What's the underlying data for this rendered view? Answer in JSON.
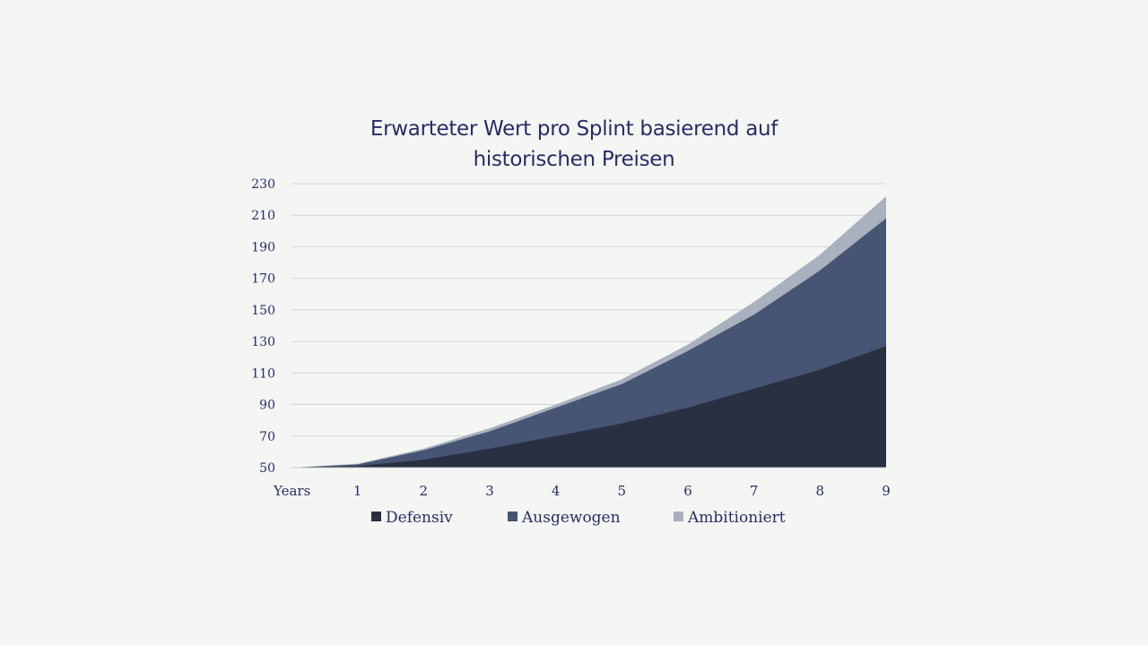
{
  "chart_data": {
    "type": "area",
    "stacked": true,
    "title": [
      "Erwarteter Wert pro Splint basierend auf",
      "historischen Preisen"
    ],
    "x_axis_first_label": "Years",
    "x": [
      0,
      1,
      2,
      3,
      4,
      5,
      6,
      7,
      8,
      9
    ],
    "x_tick_labels": [
      "Years",
      "1",
      "2",
      "3",
      "4",
      "5",
      "6",
      "7",
      "8",
      "9"
    ],
    "ylim": [
      50,
      230
    ],
    "y_ticks": [
      50,
      70,
      90,
      110,
      130,
      150,
      170,
      190,
      210,
      230
    ],
    "grid": true,
    "legend_position": "bottom",
    "series": [
      {
        "name": "Defensiv",
        "color": "#283042",
        "values": [
          50,
          51,
          55,
          62,
          70,
          78,
          88,
          100,
          112,
          127
        ]
      },
      {
        "name": "Ausgewogen",
        "color": "#465573",
        "values": [
          50,
          52,
          61,
          73,
          88,
          103,
          124,
          147,
          175,
          208
        ]
      },
      {
        "name": "Ambitioniert",
        "color": "#a9b0be",
        "values": [
          50,
          52.5,
          62,
          75,
          90,
          106,
          128,
          155,
          185,
          222
        ]
      }
    ]
  }
}
